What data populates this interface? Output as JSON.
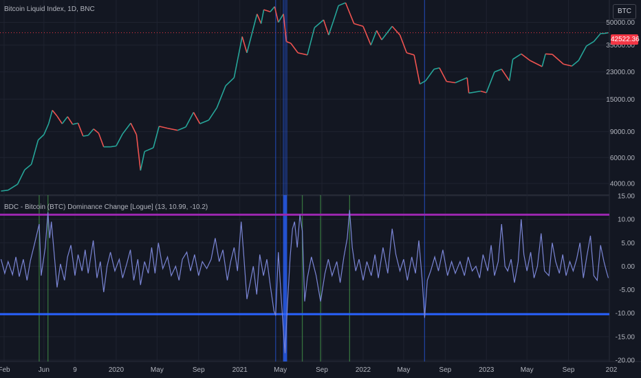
{
  "header": {
    "price_title": "Bitcoin Liquid Index, 1D, BNC",
    "symbol_button": "BTC",
    "indicator_title": "BDC - Bitcoin (BTC) Dominance Change [Logue] (13, 10.99, -10.2)"
  },
  "price_tag": {
    "value": "42522.36"
  },
  "colors": {
    "background": "#131722",
    "grid": "#1f2330",
    "candle_up": "#26a69a",
    "candle_down": "#ef5350",
    "osc_line": "#7b86d6",
    "upper_band": "#9c27b0",
    "lower_band": "#2962ff",
    "bear_highlight": "#2962ff",
    "bull_highlight": "#4caf50",
    "last_price": "#f23645"
  },
  "x_axis": {
    "labels": [
      "Feb",
      "Jun",
      "9",
      "2020",
      "May",
      "Sep",
      "2021",
      "May",
      "Sep",
      "2022",
      "May",
      "Sep",
      "2023",
      "May",
      "Sep",
      "202"
    ]
  },
  "chart_data": [
    {
      "type": "line",
      "title": "Bitcoin Liquid Index, 1D, BNC",
      "scale": "log",
      "y_tick_labels": [
        "50000.00",
        "35000.00",
        "23000.00",
        "15000.00",
        "9000.00",
        "6000.00",
        "4000.00"
      ],
      "y_ticks": [
        50000,
        35000,
        23000,
        15000,
        9000,
        6000,
        4000
      ],
      "ylim": [
        3400,
        68000
      ],
      "last_price": 42522.36,
      "points": [
        [
          "2019-01-25",
          3550
        ],
        [
          "2019-02-15",
          3600
        ],
        [
          "2019-03-15",
          3950
        ],
        [
          "2019-04-05",
          4950
        ],
        [
          "2019-04-25",
          5400
        ],
        [
          "2019-05-15",
          7900
        ],
        [
          "2019-06-01",
          8600
        ],
        [
          "2019-06-15",
          10200
        ],
        [
          "2019-06-26",
          12600
        ],
        [
          "2019-07-10",
          11500
        ],
        [
          "2019-07-25",
          10200
        ],
        [
          "2019-08-10",
          11400
        ],
        [
          "2019-08-25",
          10100
        ],
        [
          "2019-09-10",
          10300
        ],
        [
          "2019-09-25",
          8400
        ],
        [
          "2019-10-10",
          8500
        ],
        [
          "2019-10-26",
          9400
        ],
        [
          "2019-11-10",
          8800
        ],
        [
          "2019-11-25",
          7100
        ],
        [
          "2019-12-15",
          7100
        ],
        [
          "2020-01-01",
          7200
        ],
        [
          "2020-01-20",
          8700
        ],
        [
          "2020-02-13",
          10300
        ],
        [
          "2020-03-01",
          8600
        ],
        [
          "2020-03-13",
          4900
        ],
        [
          "2020-03-25",
          6600
        ],
        [
          "2020-04-20",
          7000
        ],
        [
          "2020-05-07",
          9800
        ],
        [
          "2020-06-01",
          9500
        ],
        [
          "2020-07-01",
          9200
        ],
        [
          "2020-07-25",
          9700
        ],
        [
          "2020-08-17",
          12200
        ],
        [
          "2020-09-05",
          10200
        ],
        [
          "2020-10-01",
          10800
        ],
        [
          "2020-10-25",
          13100
        ],
        [
          "2020-11-20",
          18500
        ],
        [
          "2020-12-15",
          21000
        ],
        [
          "2021-01-08",
          40000
        ],
        [
          "2021-01-22",
          31000
        ],
        [
          "2021-02-21",
          57000
        ],
        [
          "2021-03-05",
          49000
        ],
        [
          "2021-03-13",
          61000
        ],
        [
          "2021-04-01",
          59000
        ],
        [
          "2021-04-14",
          64000
        ],
        [
          "2021-04-25",
          50000
        ],
        [
          "2021-05-10",
          57000
        ],
        [
          "2021-05-19",
          37000
        ],
        [
          "2021-06-01",
          36000
        ],
        [
          "2021-06-22",
          31000
        ],
        [
          "2021-07-20",
          30000
        ],
        [
          "2021-08-10",
          46000
        ],
        [
          "2021-09-06",
          52000
        ],
        [
          "2021-09-21",
          41000
        ],
        [
          "2021-10-05",
          51000
        ],
        [
          "2021-10-20",
          65000
        ],
        [
          "2021-11-10",
          68000
        ],
        [
          "2021-12-05",
          49000
        ],
        [
          "2022-01-01",
          47000
        ],
        [
          "2022-01-24",
          35000
        ],
        [
          "2022-02-10",
          44000
        ],
        [
          "2022-02-25",
          38000
        ],
        [
          "2022-03-28",
          47000
        ],
        [
          "2022-04-20",
          41000
        ],
        [
          "2022-05-10",
          31000
        ],
        [
          "2022-06-01",
          30000
        ],
        [
          "2022-06-18",
          19000
        ],
        [
          "2022-07-05",
          20000
        ],
        [
          "2022-07-30",
          24000
        ],
        [
          "2022-08-15",
          24500
        ],
        [
          "2022-09-05",
          19800
        ],
        [
          "2022-10-01",
          19400
        ],
        [
          "2022-11-05",
          21000
        ],
        [
          "2022-11-10",
          16500
        ],
        [
          "2022-12-15",
          17000
        ],
        [
          "2023-01-01",
          16600
        ],
        [
          "2023-01-25",
          23000
        ],
        [
          "2023-02-15",
          24000
        ],
        [
          "2023-03-10",
          20000
        ],
        [
          "2023-03-20",
          28000
        ],
        [
          "2023-04-14",
          30500
        ],
        [
          "2023-05-10",
          27500
        ],
        [
          "2023-06-15",
          25000
        ],
        [
          "2023-06-25",
          30500
        ],
        [
          "2023-07-15",
          30300
        ],
        [
          "2023-08-17",
          26000
        ],
        [
          "2023-09-11",
          25200
        ],
        [
          "2023-10-01",
          27500
        ],
        [
          "2023-10-24",
          34500
        ],
        [
          "2023-11-15",
          37000
        ],
        [
          "2023-12-05",
          42000
        ],
        [
          "2023-12-15",
          42000
        ],
        [
          "2023-12-28",
          42522
        ]
      ]
    },
    {
      "type": "line",
      "title": "BDC - Bitcoin (BTC) Dominance Change [Logue] (13, 10.99, -10.2)",
      "y_tick_labels": [
        "15.00",
        "10.00",
        "5.00",
        "0.00",
        "-5.00",
        "-10.00",
        "-15.00",
        "-20.00"
      ],
      "y_ticks": [
        15,
        10,
        5,
        0,
        -5,
        -10,
        -15,
        -20
      ],
      "ylim": [
        -20,
        15
      ],
      "upper_threshold": 10.99,
      "lower_threshold": -10.2,
      "bear_highlight_dates": [
        "2021-04-17",
        "2021-05-10",
        "2021-05-15",
        "2021-05-20",
        "2022-07-02"
      ],
      "bull_highlight_dates": [
        "2019-05-18",
        "2019-06-13",
        "2021-07-05",
        "2021-08-28",
        "2021-11-22"
      ],
      "points": [
        [
          "2019-01-25",
          1.5
        ],
        [
          "2019-02-05",
          -1.5
        ],
        [
          "2019-02-15",
          1.0
        ],
        [
          "2019-02-28",
          -1.8
        ],
        [
          "2019-03-10",
          2.0
        ],
        [
          "2019-03-20",
          -2.2
        ],
        [
          "2019-04-01",
          1.5
        ],
        [
          "2019-04-12",
          -3.0
        ],
        [
          "2019-04-22",
          1.2
        ],
        [
          "2019-05-05",
          5.0
        ],
        [
          "2019-05-18",
          9.0
        ],
        [
          "2019-05-24",
          -2.0
        ],
        [
          "2019-06-05",
          4.0
        ],
        [
          "2019-06-13",
          11.5
        ],
        [
          "2019-06-18",
          6.0
        ],
        [
          "2019-06-23",
          9.5
        ],
        [
          "2019-07-01",
          3.0
        ],
        [
          "2019-07-10",
          -4.5
        ],
        [
          "2019-07-20",
          0.5
        ],
        [
          "2019-08-01",
          -3.0
        ],
        [
          "2019-08-10",
          2.0
        ],
        [
          "2019-08-20",
          4.5
        ],
        [
          "2019-09-01",
          -2.0
        ],
        [
          "2019-09-10",
          2.5
        ],
        [
          "2019-09-22",
          -1.0
        ],
        [
          "2019-10-01",
          3.5
        ],
        [
          "2019-10-10",
          -1.5
        ],
        [
          "2019-10-25",
          5.5
        ],
        [
          "2019-11-05",
          -2.5
        ],
        [
          "2019-11-15",
          1.0
        ],
        [
          "2019-11-25",
          -5.5
        ],
        [
          "2019-12-05",
          0.0
        ],
        [
          "2019-12-15",
          3.0
        ],
        [
          "2019-12-28",
          -1.0
        ],
        [
          "2020-01-10",
          1.5
        ],
        [
          "2020-01-20",
          -2.5
        ],
        [
          "2020-02-01",
          0.5
        ],
        [
          "2020-02-12",
          3.5
        ],
        [
          "2020-02-22",
          -3.0
        ],
        [
          "2020-03-05",
          1.5
        ],
        [
          "2020-03-13",
          -4.0
        ],
        [
          "2020-03-25",
          1.0
        ],
        [
          "2020-04-05",
          -1.5
        ],
        [
          "2020-04-15",
          4.0
        ],
        [
          "2020-04-25",
          -1.5
        ],
        [
          "2020-05-05",
          5.0
        ],
        [
          "2020-05-18",
          -0.5
        ],
        [
          "2020-06-01",
          2.0
        ],
        [
          "2020-06-12",
          -2.0
        ],
        [
          "2020-06-25",
          0.0
        ],
        [
          "2020-07-05",
          -3.0
        ],
        [
          "2020-07-15",
          1.5
        ],
        [
          "2020-07-28",
          3.0
        ],
        [
          "2020-08-08",
          -1.0
        ],
        [
          "2020-08-20",
          2.5
        ],
        [
          "2020-09-01",
          -2.0
        ],
        [
          "2020-09-12",
          1.0
        ],
        [
          "2020-09-25",
          -0.5
        ],
        [
          "2020-10-08",
          1.5
        ],
        [
          "2020-10-20",
          6.0
        ],
        [
          "2020-11-01",
          1.0
        ],
        [
          "2020-11-12",
          3.5
        ],
        [
          "2020-11-25",
          -3.0
        ],
        [
          "2020-12-05",
          1.0
        ],
        [
          "2020-12-15",
          4.0
        ],
        [
          "2020-12-25",
          -1.0
        ],
        [
          "2021-01-05",
          9.5
        ],
        [
          "2021-01-12",
          3.0
        ],
        [
          "2021-01-22",
          -7.0
        ],
        [
          "2021-02-02",
          -3.0
        ],
        [
          "2021-02-10",
          0.0
        ],
        [
          "2021-02-20",
          -6.0
        ],
        [
          "2021-03-01",
          2.5
        ],
        [
          "2021-03-12",
          -2.0
        ],
        [
          "2021-03-22",
          1.5
        ],
        [
          "2021-04-01",
          -4.0
        ],
        [
          "2021-04-12",
          -9.5
        ],
        [
          "2021-04-17",
          -10.5
        ],
        [
          "2021-04-25",
          3.0
        ],
        [
          "2021-05-03",
          -6.0
        ],
        [
          "2021-05-10",
          -14.0
        ],
        [
          "2021-05-15",
          -18.5
        ],
        [
          "2021-05-22",
          -8.0
        ],
        [
          "2021-05-30",
          2.0
        ],
        [
          "2021-06-06",
          8.0
        ],
        [
          "2021-06-12",
          9.5
        ],
        [
          "2021-06-20",
          4.0
        ],
        [
          "2021-06-28",
          11.0
        ],
        [
          "2021-07-05",
          7.5
        ],
        [
          "2021-07-12",
          -7.5
        ],
        [
          "2021-07-20",
          -2.5
        ],
        [
          "2021-08-01",
          2.0
        ],
        [
          "2021-08-15",
          -2.0
        ],
        [
          "2021-08-28",
          -7.5
        ],
        [
          "2021-09-10",
          -1.5
        ],
        [
          "2021-09-20",
          1.5
        ],
        [
          "2021-10-01",
          -2.0
        ],
        [
          "2021-10-15",
          1.0
        ],
        [
          "2021-10-25",
          -3.5
        ],
        [
          "2021-11-05",
          2.0
        ],
        [
          "2021-11-15",
          6.0
        ],
        [
          "2021-11-22",
          12.0
        ],
        [
          "2021-11-30",
          4.0
        ],
        [
          "2021-12-10",
          -1.0
        ],
        [
          "2021-12-20",
          1.5
        ],
        [
          "2022-01-01",
          -3.0
        ],
        [
          "2022-01-12",
          1.0
        ],
        [
          "2022-01-25",
          -2.0
        ],
        [
          "2022-02-05",
          2.5
        ],
        [
          "2022-02-15",
          -2.5
        ],
        [
          "2022-03-01",
          4.0
        ],
        [
          "2022-03-15",
          -1.5
        ],
        [
          "2022-03-28",
          8.0
        ],
        [
          "2022-04-08",
          2.5
        ],
        [
          "2022-04-20",
          -1.0
        ],
        [
          "2022-05-01",
          1.5
        ],
        [
          "2022-05-12",
          -3.0
        ],
        [
          "2022-05-25",
          2.0
        ],
        [
          "2022-06-05",
          -1.5
        ],
        [
          "2022-06-15",
          5.5
        ],
        [
          "2022-06-25",
          -3.0
        ],
        [
          "2022-07-02",
          -11.0
        ],
        [
          "2022-07-10",
          -3.0
        ],
        [
          "2022-07-20",
          -1.0
        ],
        [
          "2022-08-01",
          2.0
        ],
        [
          "2022-08-12",
          -1.0
        ],
        [
          "2022-08-25",
          3.5
        ],
        [
          "2022-09-08",
          -2.0
        ],
        [
          "2022-09-20",
          1.0
        ],
        [
          "2022-10-01",
          -1.5
        ],
        [
          "2022-10-15",
          1.0
        ],
        [
          "2022-10-28",
          -2.0
        ],
        [
          "2022-11-08",
          2.0
        ],
        [
          "2022-11-20",
          -1.0
        ],
        [
          "2022-12-01",
          0.0
        ],
        [
          "2022-12-12",
          -2.5
        ],
        [
          "2022-12-22",
          2.5
        ],
        [
          "2023-01-05",
          -1.0
        ],
        [
          "2023-01-15",
          4.5
        ],
        [
          "2023-01-25",
          -2.0
        ],
        [
          "2023-02-05",
          1.0
        ],
        [
          "2023-02-15",
          9.0
        ],
        [
          "2023-02-25",
          0.0
        ],
        [
          "2023-03-05",
          -1.0
        ],
        [
          "2023-03-15",
          1.5
        ],
        [
          "2023-03-25",
          -3.5
        ],
        [
          "2023-04-05",
          1.0
        ],
        [
          "2023-04-14",
          10.0
        ],
        [
          "2023-04-22",
          2.5
        ],
        [
          "2023-05-01",
          -1.0
        ],
        [
          "2023-05-12",
          3.0
        ],
        [
          "2023-05-22",
          -2.5
        ],
        [
          "2023-06-01",
          0.0
        ],
        [
          "2023-06-12",
          7.0
        ],
        [
          "2023-06-22",
          -1.0
        ],
        [
          "2023-07-05",
          -2.0
        ],
        [
          "2023-07-15",
          5.0
        ],
        [
          "2023-07-25",
          1.0
        ],
        [
          "2023-08-05",
          -1.5
        ],
        [
          "2023-08-15",
          2.5
        ],
        [
          "2023-08-25",
          -2.0
        ],
        [
          "2023-09-05",
          1.0
        ],
        [
          "2023-09-15",
          -1.0
        ],
        [
          "2023-09-25",
          1.5
        ],
        [
          "2023-10-05",
          5.0
        ],
        [
          "2023-10-15",
          -2.5
        ],
        [
          "2023-10-25",
          2.0
        ],
        [
          "2023-11-05",
          6.5
        ],
        [
          "2023-11-15",
          -2.0
        ],
        [
          "2023-11-25",
          -3.0
        ],
        [
          "2023-12-05",
          4.5
        ],
        [
          "2023-12-15",
          1.0
        ],
        [
          "2023-12-22",
          -1.0
        ],
        [
          "2023-12-28",
          -2.5
        ]
      ]
    }
  ]
}
